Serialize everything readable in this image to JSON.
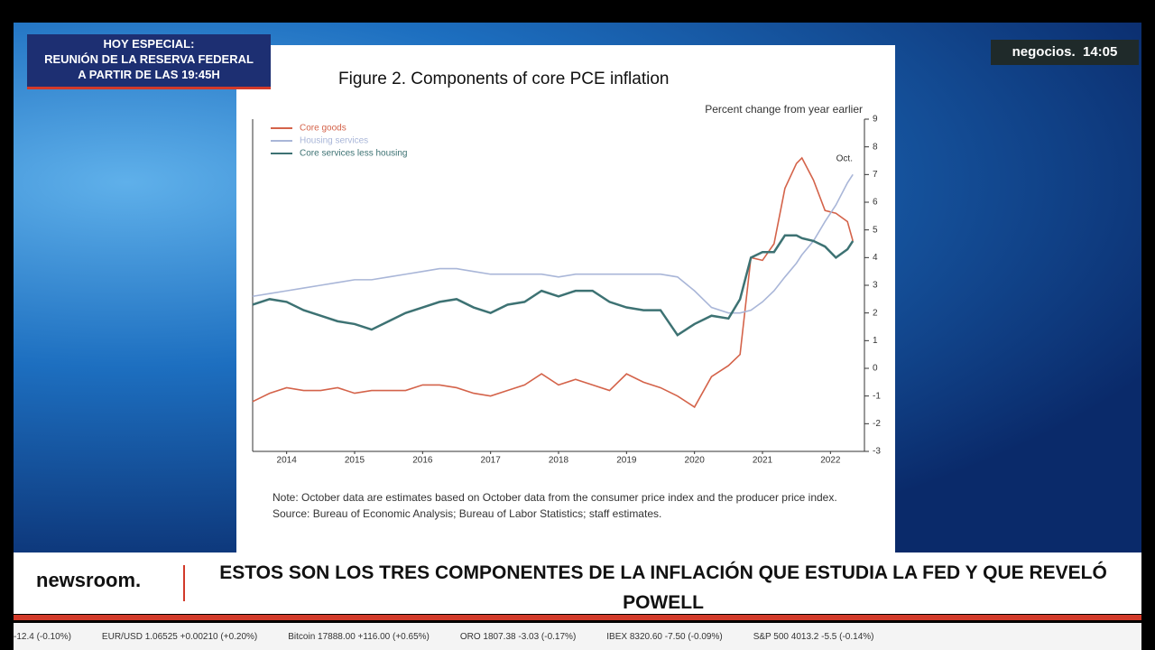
{
  "banner": {
    "line1": "HOY ESPECIAL:",
    "line2": "REUNIÓN DE LA RESERVA FEDERAL",
    "line3": "A PARTIR DE LAS 19:45H"
  },
  "channel": {
    "name": "negocios.",
    "time": "14:05"
  },
  "chart_data": {
    "type": "line",
    "title": "Figure 2. Components of core PCE inflation",
    "y_label": "Percent change from year earlier",
    "annotation": "Oct.",
    "x": [
      2014.0,
      2014.25,
      2014.5,
      2014.75,
      2015.0,
      2015.25,
      2015.5,
      2015.75,
      2016.0,
      2016.25,
      2016.5,
      2016.75,
      2017.0,
      2017.25,
      2017.5,
      2017.75,
      2018.0,
      2018.25,
      2018.5,
      2018.75,
      2019.0,
      2019.25,
      2019.5,
      2019.75,
      2020.0,
      2020.25,
      2020.5,
      2020.75,
      2021.0,
      2021.17,
      2021.33,
      2021.5,
      2021.67,
      2021.83,
      2022.0,
      2022.08,
      2022.25,
      2022.42,
      2022.58,
      2022.75,
      2022.83
    ],
    "series": [
      {
        "name": "Core goods",
        "color": "#d4634a",
        "values": [
          -1.2,
          -0.9,
          -0.7,
          -0.8,
          -0.8,
          -0.7,
          -0.9,
          -0.8,
          -0.8,
          -0.8,
          -0.6,
          -0.6,
          -0.7,
          -0.9,
          -1.0,
          -0.8,
          -0.6,
          -0.2,
          -0.6,
          -0.4,
          -0.6,
          -0.8,
          -0.2,
          -0.5,
          -0.7,
          -1.0,
          -1.4,
          -0.3,
          0.1,
          0.5,
          4.0,
          3.9,
          4.5,
          6.5,
          7.4,
          7.6,
          6.8,
          5.7,
          5.6,
          5.3,
          4.6
        ]
      },
      {
        "name": "Housing services",
        "color": "#a9b6d8",
        "values": [
          2.6,
          2.7,
          2.8,
          2.9,
          3.0,
          3.1,
          3.2,
          3.2,
          3.3,
          3.4,
          3.5,
          3.6,
          3.6,
          3.5,
          3.4,
          3.4,
          3.4,
          3.4,
          3.3,
          3.4,
          3.4,
          3.4,
          3.4,
          3.4,
          3.4,
          3.3,
          2.8,
          2.2,
          2.0,
          2.0,
          2.1,
          2.4,
          2.8,
          3.3,
          3.8,
          4.1,
          4.6,
          5.3,
          5.9,
          6.7,
          7.0
        ]
      },
      {
        "name": "Core services less housing",
        "color": "#3d7273",
        "values": [
          2.3,
          2.5,
          2.4,
          2.1,
          1.9,
          1.7,
          1.6,
          1.4,
          1.7,
          2.0,
          2.2,
          2.4,
          2.5,
          2.2,
          2.0,
          2.3,
          2.4,
          2.8,
          2.6,
          2.8,
          2.8,
          2.4,
          2.2,
          2.1,
          2.1,
          1.2,
          1.6,
          1.9,
          1.8,
          2.5,
          4.0,
          4.2,
          4.2,
          4.8,
          4.8,
          4.7,
          4.6,
          4.4,
          4.0,
          4.3,
          4.6
        ]
      }
    ],
    "xlim": [
      2014,
      2023
    ],
    "xticks": [
      {
        "value": 2014.5,
        "label": "2014"
      },
      {
        "value": 2015.5,
        "label": "2015"
      },
      {
        "value": 2016.5,
        "label": "2016"
      },
      {
        "value": 2017.5,
        "label": "2017"
      },
      {
        "value": 2018.5,
        "label": "2018"
      },
      {
        "value": 2019.5,
        "label": "2019"
      },
      {
        "value": 2020.5,
        "label": "2020"
      },
      {
        "value": 2021.5,
        "label": "2021"
      },
      {
        "value": 2022.5,
        "label": "2022"
      }
    ],
    "ylim": [
      -3,
      9
    ],
    "yticks": [
      -3,
      -2,
      -1,
      0,
      1,
      2,
      3,
      4,
      5,
      6,
      7,
      8,
      9
    ],
    "legend": "upper left",
    "note": "Note: October data are estimates based on October data from the consumer price index and the producer price index.",
    "source": "Source: Bureau of Economic Analysis; Bureau of Labor Statistics; staff estimates."
  },
  "lower_third": {
    "brand": "newsroom.",
    "headline": "ESTOS SON LOS TRES COMPONENTES DE LA INFLACIÓN QUE ESTUDIA LA FED Y QUE REVELÓ POWELL"
  },
  "ticker": [
    "-12.4 (-0.10%)",
    "EUR/USD 1.06525 +0.00210 (+0.20%)",
    "Bitcoin 17888.00 +116.00 (+0.65%)",
    "ORO 1807.38 -3.03 (-0.17%)",
    "IBEX 8320.60 -7.50 (-0.09%)",
    "S&P 500 4013.2 -5.5 (-0.14%)"
  ]
}
